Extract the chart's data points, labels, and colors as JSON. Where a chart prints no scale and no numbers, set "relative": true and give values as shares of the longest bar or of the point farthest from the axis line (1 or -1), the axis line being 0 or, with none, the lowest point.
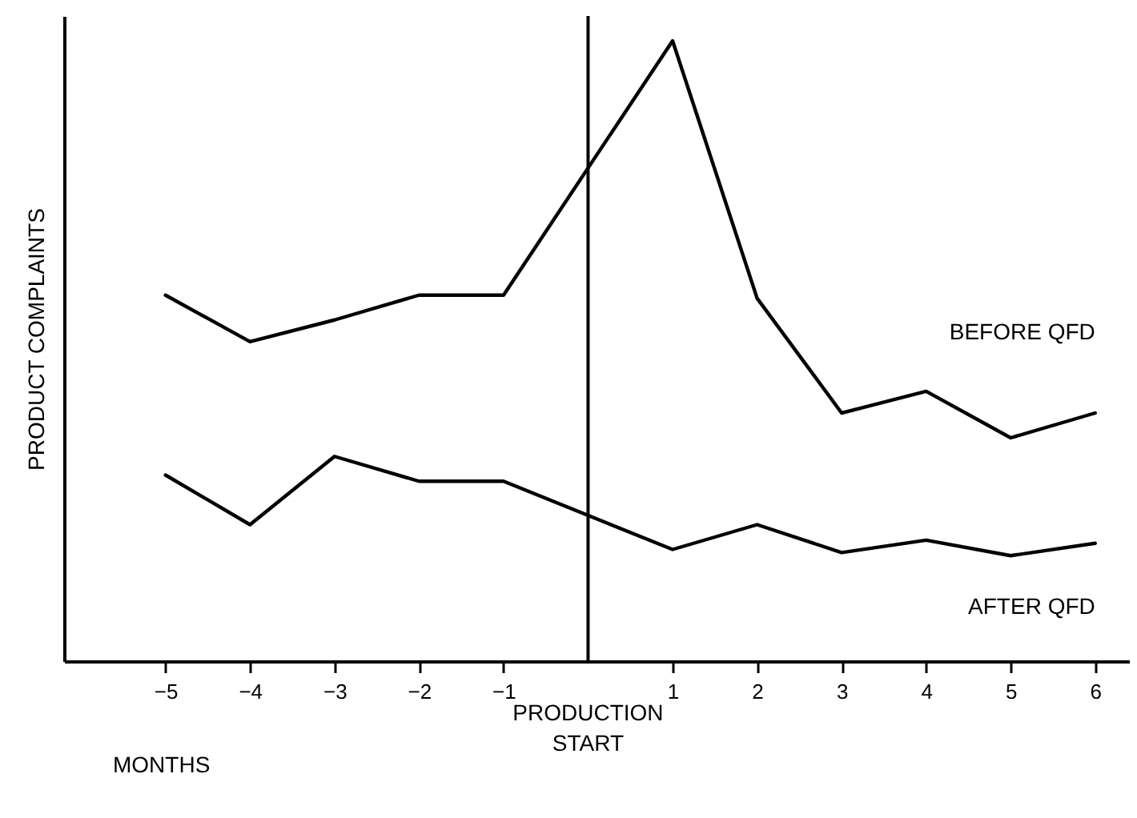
{
  "chart_data": {
    "type": "line",
    "relative": true,
    "xlabel": "MONTHS",
    "ylabel": "PRODUCT COMPLAINTS",
    "x": [
      -5,
      -4,
      -3,
      -2,
      -1,
      1,
      2,
      3,
      4,
      5,
      6
    ],
    "xlim": [
      -6.2,
      6.4
    ],
    "xticks": [
      -5,
      -4,
      -3,
      -2,
      -1,
      1,
      2,
      3,
      4,
      5,
      6
    ],
    "series": [
      {
        "name": "BEFORE QFD",
        "color": "#000000",
        "values": [
          0.59,
          0.515,
          0.55,
          0.59,
          0.59,
          1,
          0.585,
          0.4,
          0.435,
          0.36,
          0.4
        ]
      },
      {
        "name": "AFTER QFD",
        "color": "#000000",
        "values": [
          0.3,
          0.22,
          0.33,
          0.29,
          0.29,
          0.18,
          0.22,
          0.175,
          0.195,
          0.17,
          0.19
        ]
      }
    ],
    "ref_lines": [
      {
        "axis": "x",
        "value": 0,
        "label": "PRODUCTION START",
        "color": "#000000"
      }
    ],
    "marker": "none",
    "line_style": "solid"
  }
}
